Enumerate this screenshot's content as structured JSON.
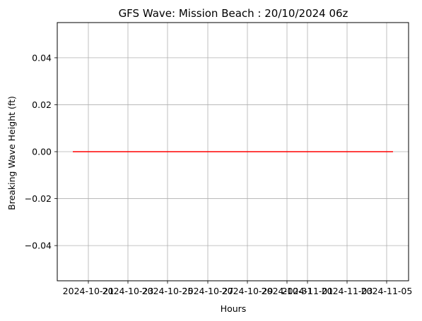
{
  "chart_data": {
    "type": "line",
    "title": "GFS Wave: Mission Beach : 20/10/2024 06z",
    "xlabel": "Hours",
    "ylabel": "Breaking Wave Height (ft)",
    "x_ticks": [
      "2024-10-21",
      "2024-10-23",
      "2024-10-25",
      "2024-10-27",
      "2024-10-29",
      "2024-10-31",
      "2024-11-01",
      "2024-11-03",
      "2024-11-05"
    ],
    "y_ticks": [
      "−0.04",
      "−0.02",
      "0.00",
      "0.02",
      "0.04"
    ],
    "ylim": [
      -0.055,
      0.055
    ],
    "grid": true,
    "series": [
      {
        "color": "#ff0000",
        "x": [
          "2024-10-20",
          "2024-11-05"
        ],
        "values": [
          0.0,
          0.0
        ]
      }
    ]
  }
}
